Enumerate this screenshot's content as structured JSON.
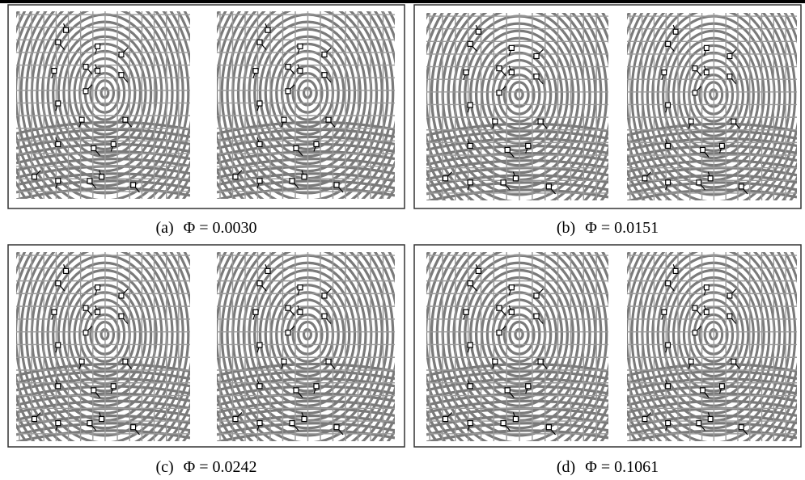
{
  "panels": [
    {
      "label": "(a)",
      "caption": "Φ = 0.0030"
    },
    {
      "label": "(b)",
      "caption": "Φ = 0.0151"
    },
    {
      "label": "(c)",
      "caption": "Φ = 0.0242"
    },
    {
      "label": "(d)",
      "caption": "Φ = 0.1061"
    }
  ]
}
